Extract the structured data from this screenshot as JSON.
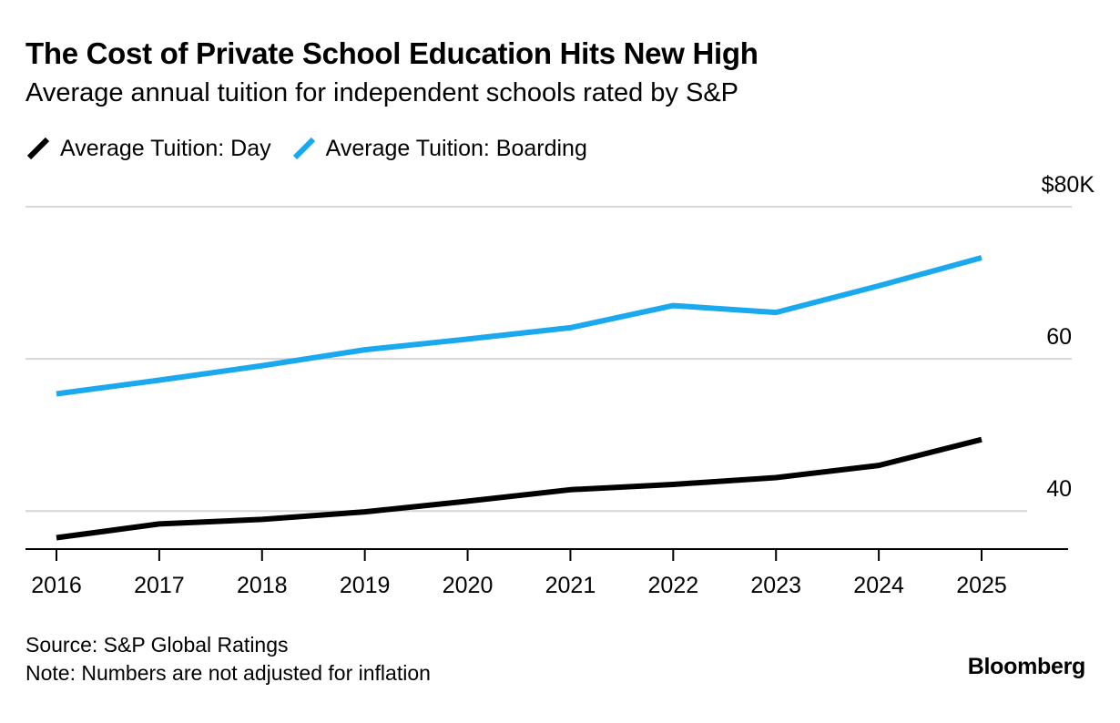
{
  "title": "The Cost of Private School Education Hits New High",
  "subtitle": "Average annual tuition for independent schools rated by S&P",
  "legend": [
    {
      "label": "Average Tuition: Day",
      "color": "#000000"
    },
    {
      "label": "Average Tuition: Boarding",
      "color": "#1aa9ee"
    }
  ],
  "source": "Source: S&P Global Ratings",
  "note": "Note: Numbers are not adjusted for inflation",
  "brand": "Bloomberg",
  "chart_data": {
    "type": "line",
    "x": [
      "2016",
      "2017",
      "2018",
      "2019",
      "2020",
      "2021",
      "2022",
      "2023",
      "2024",
      "2025"
    ],
    "series": [
      {
        "name": "Average Tuition: Day",
        "color": "#000000",
        "values": [
          36.5,
          38.3,
          38.9,
          39.9,
          41.3,
          42.8,
          43.5,
          44.4,
          46.0,
          49.4
        ]
      },
      {
        "name": "Average Tuition: Boarding",
        "color": "#1aa9ee",
        "values": [
          55.4,
          57.2,
          59.1,
          61.2,
          62.6,
          64.1,
          67.0,
          66.1,
          69.6,
          73.3
        ]
      }
    ],
    "ylim": [
      35,
      80
    ],
    "yticks": [
      40,
      60,
      80
    ],
    "ytick_labels": [
      "40",
      "60",
      "$80K"
    ],
    "grid": true,
    "legend_position": "top-left"
  }
}
